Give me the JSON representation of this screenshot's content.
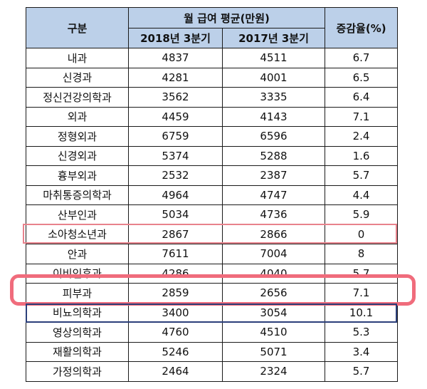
{
  "table": {
    "header": {
      "category": "구분",
      "group": "월 급여 평균(만원)",
      "col_2018": "2018년 3분기",
      "col_2017": "2017년 3분기",
      "change": "증감율(%)"
    },
    "rows": [
      {
        "name": "내과",
        "y2018": "4837",
        "y2017": "4511",
        "change": "6.7"
      },
      {
        "name": "신경과",
        "y2018": "4281",
        "y2017": "4001",
        "change": "6.5"
      },
      {
        "name": "정신건강의학과",
        "y2018": "3562",
        "y2017": "3335",
        "change": "6.4"
      },
      {
        "name": "외과",
        "y2018": "4459",
        "y2017": "4143",
        "change": "7.1"
      },
      {
        "name": "정형외과",
        "y2018": "6759",
        "y2017": "6596",
        "change": "2.4"
      },
      {
        "name": "신경외과",
        "y2018": "5374",
        "y2017": "5288",
        "change": "1.6"
      },
      {
        "name": "흉부외과",
        "y2018": "2532",
        "y2017": "2387",
        "change": "5.7"
      },
      {
        "name": "마취통증의학과",
        "y2018": "4964",
        "y2017": "4747",
        "change": "4.4"
      },
      {
        "name": "산부인과",
        "y2018": "5034",
        "y2017": "4736",
        "change": "5.9"
      },
      {
        "name": "소아청소년과",
        "y2018": "2867",
        "y2017": "2866",
        "change": "0"
      },
      {
        "name": "안과",
        "y2018": "7611",
        "y2017": "7004",
        "change": "8"
      },
      {
        "name": "이비인후과",
        "y2018": "4286",
        "y2017": "4040",
        "change": "5.7"
      },
      {
        "name": "피부과",
        "y2018": "2859",
        "y2017": "2656",
        "change": "7.1"
      },
      {
        "name": "비뇨의학과",
        "y2018": "3400",
        "y2017": "3054",
        "change": "10.1"
      },
      {
        "name": "영상의학과",
        "y2018": "4760",
        "y2017": "4510",
        "change": "5.3"
      },
      {
        "name": "재활의학과",
        "y2018": "5246",
        "y2017": "5071",
        "change": "3.4"
      },
      {
        "name": "가정의학과",
        "y2018": "2464",
        "y2017": "2324",
        "change": "5.7"
      }
    ]
  },
  "highlights": {
    "thin_box_color": "#e8828c",
    "thick_box_color": "#f06c7c",
    "blue_box_color": "#2b3f7a",
    "header_bg": "#bcd0e9"
  }
}
